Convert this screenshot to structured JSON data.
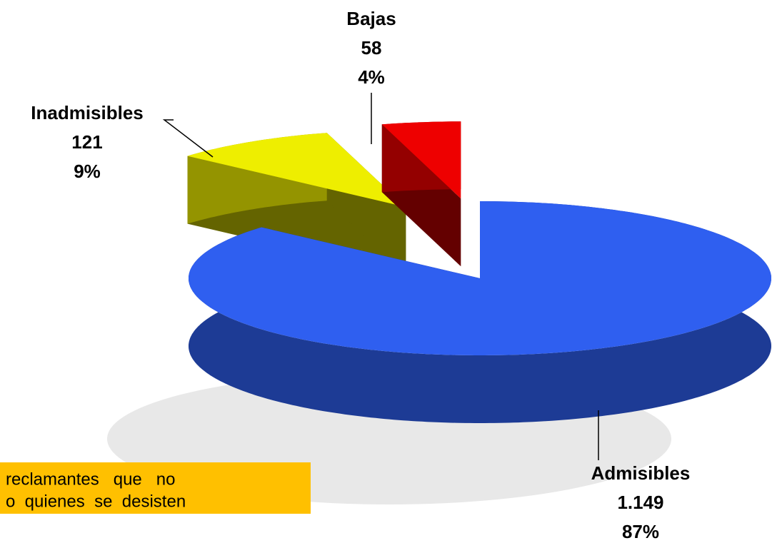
{
  "chart_data": {
    "type": "pie",
    "categories": [
      "Admisibles",
      "Inadmisibles",
      "Bajas"
    ],
    "values": [
      1149,
      121,
      58
    ],
    "value_labels": [
      "1.149",
      "121",
      "58"
    ],
    "percentage_labels": [
      "87%",
      "9%",
      "4%"
    ],
    "colors": [
      "#2f5ff0",
      "#eeee00",
      "#ee0000"
    ],
    "exploded": [
      false,
      true,
      true
    ]
  },
  "note": {
    "lines": [
      "reclamantes   que   no",
      "o  quienes  se  desisten"
    ]
  }
}
